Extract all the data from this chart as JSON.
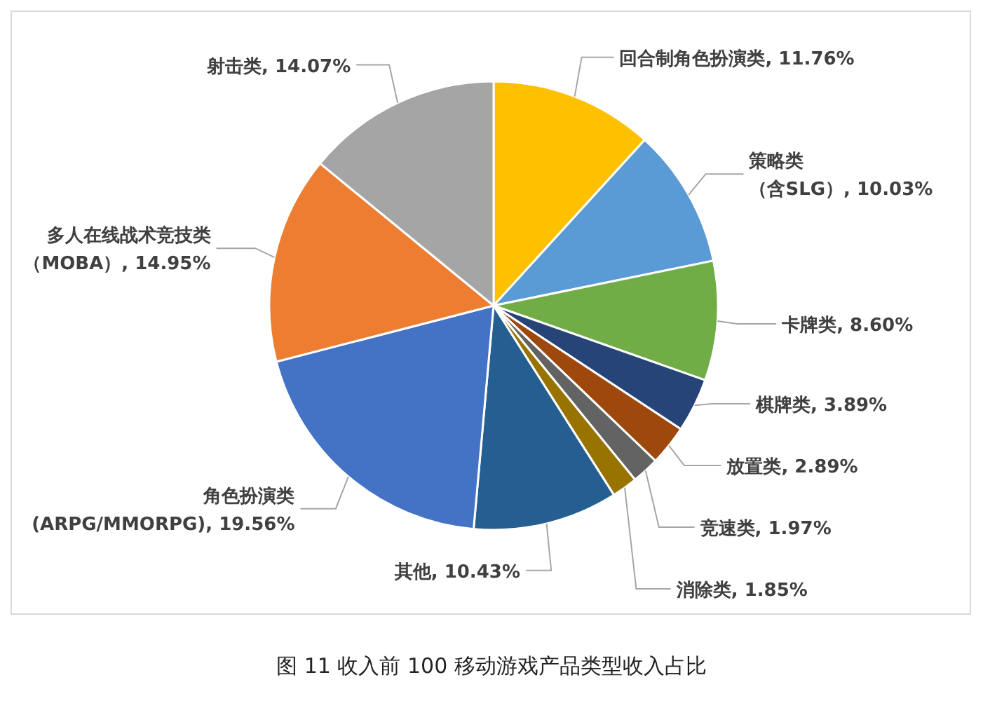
{
  "chart_data": {
    "type": "pie",
    "title": "图 11 收入前 100 移动游戏产品类型收入占比",
    "categories": [
      "回合制角色扮演类",
      "策略类（含SLG）",
      "卡牌类",
      "棋牌类",
      "放置类",
      "竞速类",
      "消除类",
      "其他",
      "角色扮演类(ARPG/MMORPG)",
      "多人在线战术竞技类（MOBA）",
      "射击类"
    ],
    "values": [
      11.76,
      10.03,
      8.6,
      3.89,
      2.89,
      1.97,
      1.85,
      10.43,
      19.56,
      14.95,
      14.07
    ],
    "value_labels": [
      "11.76%",
      "10.03%",
      "8.60%",
      "3.89%",
      "2.89%",
      "1.97%",
      "1.85%",
      "10.43%",
      "19.56%",
      "14.95%",
      "14.07%"
    ],
    "colors": [
      "#ffc000",
      "#5b9bd5",
      "#70ad47",
      "#264478",
      "#9e480e",
      "#636363",
      "#997300",
      "#255e91",
      "#4472c4",
      "#ed7d31",
      "#a5a5a5"
    ],
    "legend": false
  }
}
